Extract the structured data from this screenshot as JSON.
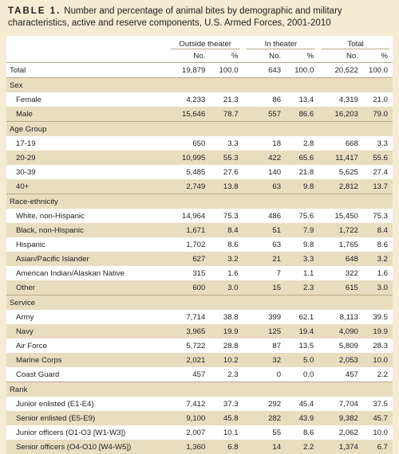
{
  "caption": {
    "label": "TABLE 1.",
    "text": "Number and percentage of animal bites by demographic and military characteristics, active and reserve components, U.S. Armed Forces, 2001-2010"
  },
  "headers": {
    "outside": "Outside theater",
    "inside": "In theater",
    "total": "Total",
    "no": "No.",
    "pct": "%"
  },
  "total": {
    "label": "Total",
    "vals": [
      "19,879",
      "100.0",
      "643",
      "100.0",
      "20,522",
      "100.0"
    ]
  },
  "sections": [
    {
      "title": "Sex",
      "rows": [
        {
          "label": "Female",
          "vals": [
            "4,233",
            "21.3",
            "86",
            "13.4",
            "4,319",
            "21.0"
          ]
        },
        {
          "label": "Male",
          "vals": [
            "15,646",
            "78.7",
            "557",
            "86.6",
            "16,203",
            "79.0"
          ]
        }
      ]
    },
    {
      "title": "Age Group",
      "rows": [
        {
          "label": "17-19",
          "vals": [
            "650",
            "3.3",
            "18",
            "2.8",
            "668",
            "3.3"
          ]
        },
        {
          "label": "20-29",
          "vals": [
            "10,995",
            "55.3",
            "422",
            "65.6",
            "11,417",
            "55.6"
          ]
        },
        {
          "label": "30-39",
          "vals": [
            "5,485",
            "27.6",
            "140",
            "21.8",
            "5,625",
            "27.4"
          ]
        },
        {
          "label": "40+",
          "vals": [
            "2,749",
            "13.8",
            "63",
            "9.8",
            "2,812",
            "13.7"
          ]
        }
      ]
    },
    {
      "title": "Race-ethnicity",
      "rows": [
        {
          "label": "White, non-Hispanic",
          "vals": [
            "14,964",
            "75.3",
            "486",
            "75.6",
            "15,450",
            "75.3"
          ]
        },
        {
          "label": "Black, non-Hispanic",
          "vals": [
            "1,671",
            "8.4",
            "51",
            "7.9",
            "1,722",
            "8.4"
          ]
        },
        {
          "label": "Hispanic",
          "vals": [
            "1,702",
            "8.6",
            "63",
            "9.8",
            "1,765",
            "8.6"
          ]
        },
        {
          "label": "Asian/Pacific Islander",
          "vals": [
            "627",
            "3.2",
            "21",
            "3.3",
            "648",
            "3.2"
          ]
        },
        {
          "label": "American Indian/Alaskan Native",
          "vals": [
            "315",
            "1.6",
            "7",
            "1.1",
            "322",
            "1.6"
          ]
        },
        {
          "label": "Other",
          "vals": [
            "600",
            "3.0",
            "15",
            "2.3",
            "615",
            "3.0"
          ]
        }
      ]
    },
    {
      "title": "Service",
      "rows": [
        {
          "label": "Army",
          "vals": [
            "7,714",
            "38.8",
            "399",
            "62.1",
            "8,113",
            "39.5"
          ]
        },
        {
          "label": "Navy",
          "vals": [
            "3,965",
            "19.9",
            "125",
            "19.4",
            "4,090",
            "19.9"
          ]
        },
        {
          "label": "Air Force",
          "vals": [
            "5,722",
            "28.8",
            "87",
            "13.5",
            "5,809",
            "28.3"
          ]
        },
        {
          "label": "Marine Corps",
          "vals": [
            "2,021",
            "10.2",
            "32",
            "5.0",
            "2,053",
            "10.0"
          ]
        },
        {
          "label": "Coast Guard",
          "vals": [
            "457",
            "2.3",
            "0",
            "0.0",
            "457",
            "2.2"
          ]
        }
      ]
    },
    {
      "title": "Rank",
      "rows": [
        {
          "label": "Junior enlisted (E1-E4)",
          "vals": [
            "7,412",
            "37.3",
            "292",
            "45.4",
            "7,704",
            "37.5"
          ]
        },
        {
          "label": "Senior enlisted (E5-E9)",
          "vals": [
            "9,100",
            "45.8",
            "282",
            "43.9",
            "9,382",
            "45.7"
          ]
        },
        {
          "label": "Junior officers (O1-O3 [W1-W3])",
          "vals": [
            "2,007",
            "10.1",
            "55",
            "8.6",
            "2,062",
            "10.0"
          ]
        },
        {
          "label": "Senior officers (O4-O10 [W4-W5])",
          "vals": [
            "1,360",
            "6.8",
            "14",
            "2.2",
            "1,374",
            "6.7"
          ]
        }
      ]
    }
  ]
}
